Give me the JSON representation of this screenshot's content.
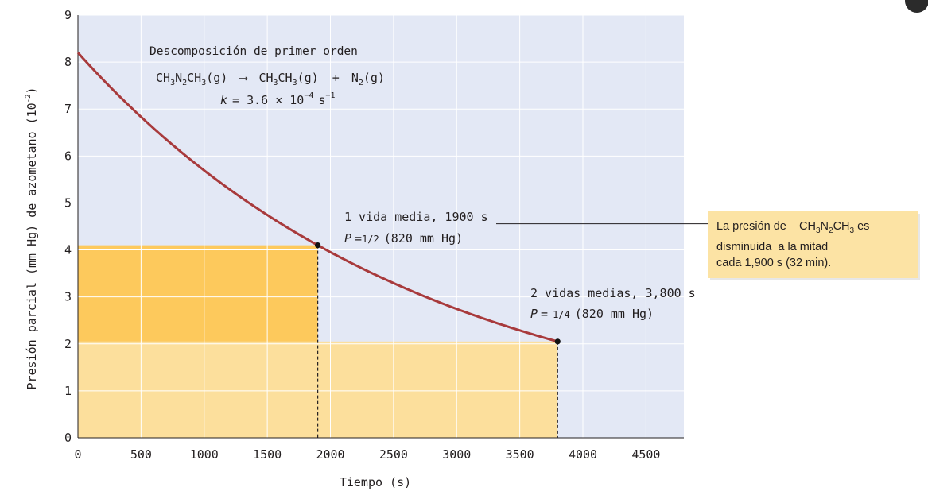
{
  "chart_data": {
    "type": "line",
    "title": "Descomposición de primer orden",
    "equation": {
      "reactant": "CH3N2CH3(g)",
      "arrow": "⟶",
      "product1": "CH3CH3(g)",
      "plus": "+",
      "product2": "N2(g)"
    },
    "rate_constant": {
      "symbol": "k",
      "text": "= 3.6 × 10",
      "exponent": "−4",
      "unit": "s",
      "unit_exponent": "−1"
    },
    "xlabel": "Tiempo (s)",
    "ylabel": "Presión parcial (mm Hg) de azometano (10",
    "ylabel_exponent": "-2",
    "ylabel_close": ")",
    "xlim": [
      0,
      4800
    ],
    "ylim": [
      0,
      9
    ],
    "x_ticks": [
      0,
      500,
      1000,
      1500,
      2000,
      2500,
      3000,
      3500,
      4000,
      4500
    ],
    "y_ticks": [
      0,
      1,
      2,
      3,
      4,
      5,
      6,
      7,
      8,
      9
    ],
    "grid": true,
    "series": [
      {
        "initial_pressure": 8.2,
        "half_life": 1900,
        "x_end": 3800,
        "color": "#a83a3c"
      }
    ],
    "points": [
      {
        "x": 1900,
        "y": 4.1
      },
      {
        "x": 3800,
        "y": 2.05
      }
    ],
    "shaded_regions": [
      {
        "x": [
          0,
          3800
        ],
        "y": [
          0,
          2.05
        ],
        "color": "#fcdf9c"
      },
      {
        "x": [
          0,
          1900
        ],
        "y": [
          2.05,
          4.1
        ],
        "color": "#fdc95c"
      }
    ],
    "annotations": [
      {
        "line1": "1 vida media, 1900 s",
        "p_symbol": "P",
        "p_equals": "=",
        "p_fraction": "1/2",
        "p_value": "(820 mm Hg)"
      },
      {
        "line1": "2 vidas medias, 3,800 s",
        "p_symbol": "P",
        "p_equals": "=",
        "p_fraction": "1/4",
        "p_value": "(820 mm Hg)"
      }
    ],
    "callout": {
      "line1_prefix": "La presión de",
      "species": "CH3N2CH3",
      "line1_suffix": "es",
      "line2": "disminuida  a la mitad",
      "line3": "cada 1,900 s (32 min)."
    },
    "colors": {
      "plot_bg": "#e3e8f5",
      "grid": "#ffffff",
      "curve": "#a83a3c",
      "light_fill": "#fcdf9c",
      "dark_fill": "#fdc95c",
      "callout_bg": "#fce3a4"
    }
  }
}
